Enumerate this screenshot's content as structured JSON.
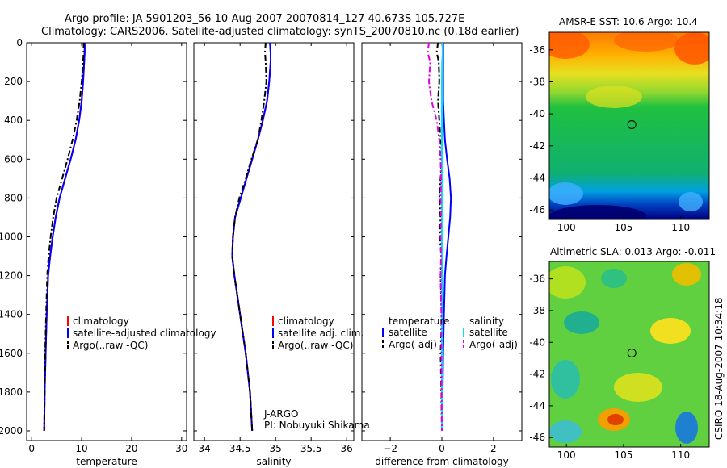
{
  "header": {
    "line1": "Argo profile: JA 5901203_56 10-Aug-2007 20070814_127 40.673S 105.727E",
    "line2": "Climatology: CARS2006. Satellite-adjusted climatology: synTS_20070810.nc (0.18d earlier)"
  },
  "side_stamp": "CSIRO 18-Aug-2007 10:34:18",
  "colors": {
    "red": "#ff0000",
    "blue": "#0000ff",
    "black": "#000000",
    "cyan": "#00e5ee",
    "magenta": "#e000e0"
  },
  "chart_data": [
    {
      "id": "temperature",
      "type": "line",
      "title": "",
      "xlabel": "temperature",
      "ylabel": "",
      "xlim": [
        -1,
        31
      ],
      "ylim": [
        2050,
        0
      ],
      "xticks": [
        0,
        10,
        20,
        30
      ],
      "yticks": [
        0,
        200,
        400,
        600,
        800,
        1000,
        1200,
        1400,
        1600,
        1800,
        2000
      ],
      "series": [
        {
          "name": "climatology",
          "style": "solid",
          "color": "red",
          "x": [
            10.6,
            10.6,
            10.5,
            10.3,
            10.0,
            9.5,
            8.8,
            7.8,
            6.7,
            5.6,
            4.8,
            4.2,
            3.7,
            3.3,
            3.0,
            2.8,
            2.7,
            2.6,
            2.5
          ],
          "y": [
            0,
            50,
            100,
            200,
            300,
            400,
            500,
            600,
            700,
            800,
            900,
            1000,
            1100,
            1200,
            1400,
            1600,
            1700,
            1800,
            2000
          ]
        },
        {
          "name": "satellite-adjusted climatology",
          "style": "solid",
          "color": "blue",
          "x": [
            10.6,
            10.6,
            10.5,
            10.3,
            10.0,
            9.5,
            8.8,
            7.8,
            6.7,
            5.6,
            4.8,
            4.2,
            3.7,
            3.3,
            3.0,
            2.8,
            2.7,
            2.6,
            2.5
          ],
          "y": [
            0,
            50,
            100,
            200,
            300,
            400,
            500,
            600,
            700,
            800,
            900,
            1000,
            1100,
            1200,
            1400,
            1600,
            1700,
            1800,
            2000
          ]
        },
        {
          "name": "Argo(..raw -QC)",
          "style": "dashed",
          "color": "black",
          "x": [
            10.4,
            10.4,
            10.3,
            10.0,
            9.6,
            9.0,
            8.2,
            7.2,
            6.1,
            5.0,
            4.3,
            3.8,
            3.4,
            3.1,
            2.9,
            2.7,
            2.6,
            2.5
          ],
          "y": [
            0,
            50,
            100,
            200,
            300,
            400,
            500,
            600,
            700,
            800,
            900,
            1000,
            1100,
            1200,
            1400,
            1600,
            1800,
            2000
          ]
        }
      ],
      "legend": [
        "climatology",
        "satellite-adjusted climatology",
        "Argo(..raw -QC)"
      ]
    },
    {
      "id": "salinity",
      "type": "line",
      "title": "",
      "xlabel": "salinity",
      "ylabel": "",
      "xlim": [
        33.85,
        36.1
      ],
      "ylim": [
        2050,
        0
      ],
      "xticks": [
        34,
        34.5,
        35,
        35.5,
        36
      ],
      "xticklabels": [
        "34",
        "34.5",
        "35",
        "35.5",
        "36"
      ],
      "yticks": [
        0,
        200,
        400,
        600,
        800,
        1000,
        1200,
        1400,
        1600,
        1800,
        2000
      ],
      "series": [
        {
          "name": "climatology",
          "style": "solid",
          "color": "red",
          "x": [
            34.92,
            34.93,
            34.93,
            34.91,
            34.88,
            34.82,
            34.75,
            34.67,
            34.59,
            34.51,
            34.43,
            34.4,
            34.39,
            34.42,
            34.5,
            34.58,
            34.64,
            34.67
          ],
          "y": [
            0,
            50,
            100,
            200,
            300,
            400,
            500,
            600,
            700,
            800,
            900,
            1000,
            1100,
            1200,
            1400,
            1600,
            1800,
            2000
          ]
        },
        {
          "name": "satellite adj. clim.",
          "style": "solid",
          "color": "blue",
          "x": [
            34.92,
            34.93,
            34.93,
            34.91,
            34.88,
            34.82,
            34.75,
            34.67,
            34.59,
            34.51,
            34.43,
            34.4,
            34.39,
            34.42,
            34.5,
            34.58,
            34.64,
            34.67
          ],
          "y": [
            0,
            50,
            100,
            200,
            300,
            400,
            500,
            600,
            700,
            800,
            900,
            1000,
            1100,
            1200,
            1400,
            1600,
            1800,
            2000
          ]
        },
        {
          "name": "Argo(..raw -QC)",
          "style": "dashed",
          "color": "black",
          "x": [
            34.86,
            34.85,
            34.86,
            34.87,
            34.84,
            34.8,
            34.75,
            34.66,
            34.58,
            34.49,
            34.43,
            34.4,
            34.39,
            34.42,
            34.5,
            34.58,
            34.64,
            34.67
          ],
          "y": [
            0,
            50,
            100,
            200,
            300,
            400,
            500,
            600,
            700,
            800,
            900,
            1000,
            1100,
            1200,
            1400,
            1600,
            1800,
            2000
          ]
        }
      ],
      "legend": [
        "climatology",
        "satellite adj. clim.",
        "Argo(..raw -QC)"
      ],
      "annotation": [
        "J-ARGO",
        "PI: Nobuyuki Shikama"
      ]
    },
    {
      "id": "difference",
      "type": "line",
      "title": "",
      "xlabel": "difference from climatology",
      "ylabel": "",
      "xlim": [
        -3.1,
        3.1
      ],
      "ylim": [
        2050,
        0
      ],
      "xticks": [
        -2,
        0,
        2
      ],
      "xticklabels": [
        "−2",
        "0",
        "2"
      ],
      "yticks": [
        0,
        200,
        400,
        600,
        800,
        1000,
        1200,
        1400,
        1600,
        1800,
        2000
      ],
      "series": [
        {
          "name": "temperature satellite",
          "style": "solid",
          "color": "blue",
          "x": [
            0.05,
            0.05,
            0.05,
            0.05,
            0.05,
            0.08,
            0.12,
            0.2,
            0.3,
            0.35,
            0.32,
            0.25,
            0.18,
            0.12,
            0.08,
            0.05,
            0.03,
            0.02
          ],
          "y": [
            0,
            50,
            100,
            200,
            300,
            400,
            500,
            600,
            700,
            800,
            900,
            1000,
            1100,
            1200,
            1400,
            1600,
            1800,
            2000
          ]
        },
        {
          "name": "temperature Argo(-adj)",
          "style": "dashed",
          "color": "black",
          "x": [
            -0.15,
            -0.2,
            -0.12,
            -0.1,
            -0.15,
            -0.1,
            -0.05,
            0.0,
            -0.05,
            -0.1,
            -0.05,
            -0.08,
            -0.02,
            -0.05,
            0.0,
            -0.05,
            -0.02,
            0.0
          ],
          "y": [
            0,
            50,
            100,
            200,
            300,
            400,
            500,
            600,
            700,
            800,
            900,
            1000,
            1100,
            1200,
            1400,
            1600,
            1800,
            2000
          ]
        },
        {
          "name": "salinity satellite",
          "style": "solid",
          "color": "cyan",
          "x": [
            0.02,
            0.03,
            0.01,
            0.0,
            0.0,
            0.0,
            0.0,
            0.0,
            0.0,
            0.0,
            0.0,
            0.0,
            0.0,
            0.0,
            0.0,
            0.0,
            0.0,
            0.0
          ],
          "y": [
            0,
            50,
            100,
            200,
            300,
            400,
            500,
            600,
            700,
            800,
            900,
            1000,
            1100,
            1200,
            1400,
            1600,
            1800,
            2000
          ]
        },
        {
          "name": "salinity Argo(-adj)",
          "style": "dashed",
          "color": "magenta",
          "x": [
            -0.5,
            -0.55,
            -0.45,
            -0.5,
            -0.4,
            -0.2,
            -0.1,
            -0.05,
            -0.03,
            -0.05,
            -0.03,
            -0.05,
            -0.03,
            -0.05,
            -0.02,
            -0.02,
            -0.01,
            0.0
          ],
          "y": [
            0,
            50,
            100,
            200,
            300,
            400,
            500,
            600,
            700,
            800,
            900,
            1000,
            1100,
            1200,
            1400,
            1600,
            1800,
            2000
          ]
        }
      ],
      "legend_headers": [
        "temperature",
        "salinity"
      ],
      "legend": [
        "satellite",
        "Argo(-adj)",
        "satellite",
        "Argo(-adj)"
      ]
    },
    {
      "id": "sst_map",
      "type": "heatmap",
      "title": "AMSR-E SST: 10.6 Argo: 10.4",
      "xlim": [
        98.5,
        112.5
      ],
      "ylim": [
        -46.6,
        -34.9
      ],
      "xticks": [
        100,
        105,
        110
      ],
      "yticks": [
        -36,
        -38,
        -40,
        -42,
        -44,
        -46
      ],
      "marker": {
        "lon": 105.727,
        "lat": -40.673
      }
    },
    {
      "id": "sla_map",
      "type": "heatmap",
      "title": "Altimetric SLA: 0.013 Argo: -0.011",
      "xlim": [
        98.5,
        112.5
      ],
      "ylim": [
        -46.6,
        -34.9
      ],
      "xticks": [
        100,
        105,
        110
      ],
      "yticks": [
        -36,
        -38,
        -40,
        -42,
        -44,
        -46
      ],
      "marker": {
        "lon": 105.727,
        "lat": -40.673
      }
    }
  ]
}
